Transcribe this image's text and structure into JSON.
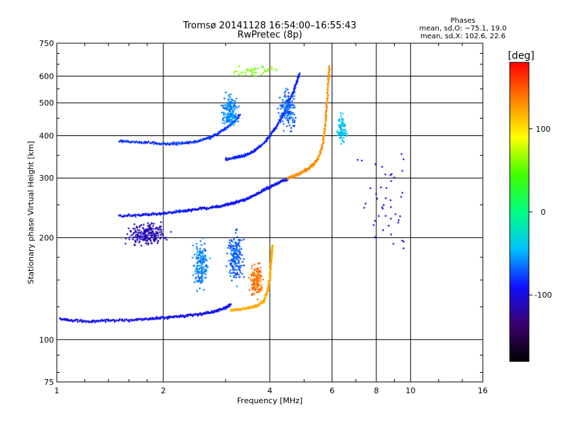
{
  "chart_data": {
    "type": "scatter",
    "title": "Tromsø 20141128 16:54:00–16:55:43",
    "subtitle": "RwPretec (8p)",
    "xlabel": "Frequency [MHz]",
    "ylabel": "Stationary phase Virtual Height [km]",
    "x_scale": "log",
    "y_scale": "log",
    "xlim": [
      1,
      16
    ],
    "ylim": [
      75,
      750
    ],
    "x_ticks": [
      1,
      2,
      4,
      6,
      8,
      10,
      16
    ],
    "x_tick_labels": [
      "1",
      "2",
      "4",
      "6",
      "8",
      "10",
      "16"
    ],
    "y_ticks": [
      75,
      100,
      200,
      300,
      400,
      500,
      600,
      750
    ],
    "y_tick_labels": [
      "75",
      "100",
      "200",
      "300",
      "400",
      "500",
      "600",
      "750"
    ],
    "grid": true,
    "legend": {
      "heading": "Phases",
      "line1": "mean, sd,O: −75.1, 19.0",
      "line2": "mean, sd,X: 102.6, 22.6",
      "position": "top-right"
    },
    "colorbar": {
      "label": "[deg]",
      "range": [
        -180,
        180
      ],
      "ticks": [
        100,
        0,
        -100
      ],
      "tick_labels": [
        "100",
        "0",
        "-100"
      ],
      "colormap": [
        "#000000",
        "#3a0070",
        "#1010ff",
        "#00c0ff",
        "#00ff80",
        "#40ff00",
        "#ffff00",
        "#ff8000",
        "#ff0000"
      ]
    },
    "traces": [
      {
        "name": "o-low",
        "phase": -95,
        "points": [
          [
            1.02,
            115
          ],
          [
            1.1,
            114
          ],
          [
            1.25,
            113
          ],
          [
            1.4,
            114
          ],
          [
            1.6,
            114
          ],
          [
            1.8,
            115
          ],
          [
            2.0,
            116
          ],
          [
            2.2,
            117
          ],
          [
            2.4,
            118
          ],
          [
            2.6,
            119
          ],
          [
            2.8,
            121
          ],
          [
            3.0,
            124
          ],
          [
            3.1,
            127
          ]
        ]
      },
      {
        "name": "x-low",
        "phase": 120,
        "points": [
          [
            3.1,
            122
          ],
          [
            3.3,
            123
          ],
          [
            3.5,
            124
          ],
          [
            3.7,
            126
          ],
          [
            3.85,
            130
          ],
          [
            3.95,
            140
          ],
          [
            4.0,
            152
          ],
          [
            4.02,
            165
          ],
          [
            4.05,
            178
          ],
          [
            4.07,
            190
          ]
        ]
      },
      {
        "name": "o-mid",
        "phase": -90,
        "points": [
          [
            1.5,
            232
          ],
          [
            1.7,
            233
          ],
          [
            1.9,
            235
          ],
          [
            2.1,
            237
          ],
          [
            2.3,
            240
          ],
          [
            2.5,
            243
          ],
          [
            2.7,
            245
          ],
          [
            2.9,
            248
          ],
          [
            3.1,
            252
          ],
          [
            3.3,
            256
          ],
          [
            3.5,
            262
          ],
          [
            3.7,
            270
          ],
          [
            3.9,
            278
          ],
          [
            4.1,
            285
          ],
          [
            4.3,
            292
          ],
          [
            4.5,
            298
          ]
        ]
      },
      {
        "name": "x-mid",
        "phase": 130,
        "points": [
          [
            4.5,
            300
          ],
          [
            4.7,
            305
          ],
          [
            4.9,
            310
          ],
          [
            5.1,
            318
          ],
          [
            5.3,
            328
          ],
          [
            5.5,
            345
          ],
          [
            5.65,
            380
          ],
          [
            5.75,
            430
          ],
          [
            5.8,
            500
          ],
          [
            5.85,
            580
          ],
          [
            5.9,
            640
          ]
        ]
      },
      {
        "name": "o-high",
        "phase": -85,
        "points": [
          [
            3.0,
            340
          ],
          [
            3.2,
            345
          ],
          [
            3.4,
            350
          ],
          [
            3.6,
            360
          ],
          [
            3.8,
            375
          ],
          [
            4.0,
            400
          ],
          [
            4.2,
            430
          ],
          [
            4.4,
            470
          ],
          [
            4.6,
            520
          ],
          [
            4.75,
            570
          ],
          [
            4.85,
            610
          ]
        ]
      },
      {
        "name": "o-upper",
        "phase": -80,
        "points": [
          [
            1.5,
            385
          ],
          [
            1.7,
            383
          ],
          [
            1.9,
            380
          ],
          [
            2.1,
            378
          ],
          [
            2.3,
            380
          ],
          [
            2.5,
            385
          ],
          [
            2.7,
            395
          ],
          [
            2.9,
            410
          ],
          [
            3.1,
            430
          ],
          [
            3.3,
            460
          ]
        ]
      }
    ],
    "clusters": [
      {
        "name": "blob-2mhz",
        "phase": -110,
        "center": [
          1.8,
          205
        ],
        "spread": [
          0.07,
          0.045
        ],
        "count": 220
      },
      {
        "name": "column-2.5",
        "phase": -60,
        "center": [
          2.55,
          165
        ],
        "spread": [
          0.03,
          0.1
        ],
        "count": 160
      },
      {
        "name": "column-3.2",
        "phase": -70,
        "center": [
          3.2,
          175
        ],
        "spread": [
          0.03,
          0.1
        ],
        "count": 180
      },
      {
        "name": "column-3.1-upper",
        "phase": -60,
        "center": [
          3.1,
          470
        ],
        "spread": [
          0.03,
          0.07
        ],
        "count": 180
      },
      {
        "name": "column-4.5-upper",
        "phase": -70,
        "center": [
          4.5,
          480
        ],
        "spread": [
          0.03,
          0.08
        ],
        "count": 150
      },
      {
        "name": "x-lower-red",
        "phase": 140,
        "center": [
          3.65,
          150
        ],
        "spread": [
          0.025,
          0.06
        ],
        "count": 140
      },
      {
        "name": "column-6.5",
        "phase": -40,
        "center": [
          6.4,
          420
        ],
        "spread": [
          0.02,
          0.06
        ],
        "count": 80
      },
      {
        "name": "sparse-high",
        "phase": -100,
        "center": [
          8.5,
          250
        ],
        "spread": [
          0.12,
          0.25
        ],
        "count": 45
      },
      {
        "name": "sparse-top",
        "phase": 60,
        "center": [
          3.6,
          620
        ],
        "spread": [
          0.1,
          0.02
        ],
        "count": 40
      }
    ]
  }
}
